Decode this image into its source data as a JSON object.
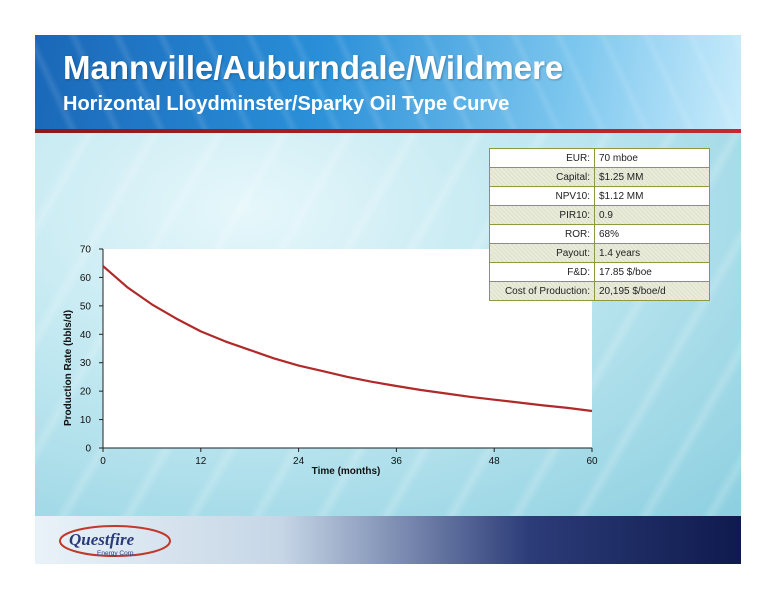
{
  "slide": {
    "title": "Mannville/Auburndale/Wildmere",
    "subtitle": "Horizontal Lloydminster/Sparky Oil Type Curve"
  },
  "logo": {
    "name": "Questfire",
    "sub": "Energy Corp."
  },
  "colors": {
    "curve": "#b02a2a",
    "table_border": "#8d9a3c",
    "header_red": "#b22222"
  },
  "chart_data": {
    "type": "line",
    "title": "",
    "xlabel": "Time (months)",
    "ylabel": "Production Rate (bbls/d)",
    "xlim": [
      0,
      60
    ],
    "ylim": [
      0,
      70
    ],
    "xticks": [
      0,
      12,
      24,
      36,
      48,
      60
    ],
    "yticks": [
      0,
      10,
      20,
      30,
      40,
      50,
      60,
      70
    ],
    "grid": false,
    "series": [
      {
        "name": "",
        "x": [
          0,
          3,
          6,
          9,
          12,
          15,
          18,
          21,
          24,
          27,
          30,
          33,
          36,
          39,
          42,
          45,
          48,
          51,
          54,
          57,
          60
        ],
        "y": [
          64,
          56.5,
          50.5,
          45.5,
          41,
          37.5,
          34.5,
          31.5,
          29,
          27,
          25,
          23.3,
          21.8,
          20.4,
          19.2,
          18,
          17,
          16,
          15,
          14.1,
          13
        ]
      }
    ]
  },
  "stats": [
    {
      "label": "EUR:",
      "value": "70 mboe"
    },
    {
      "label": "Capital:",
      "value": "$1.25 MM"
    },
    {
      "label": "NPV10:",
      "value": "$1.12 MM"
    },
    {
      "label": "PIR10:",
      "value": "0.9"
    },
    {
      "label": "ROR:",
      "value": "68%"
    },
    {
      "label": "Payout:",
      "value": "1.4 years"
    },
    {
      "label": "F&D:",
      "value": "17.85 $/boe"
    },
    {
      "label": "Cost of Production:",
      "value": "20,195 $/boe/d"
    }
  ]
}
